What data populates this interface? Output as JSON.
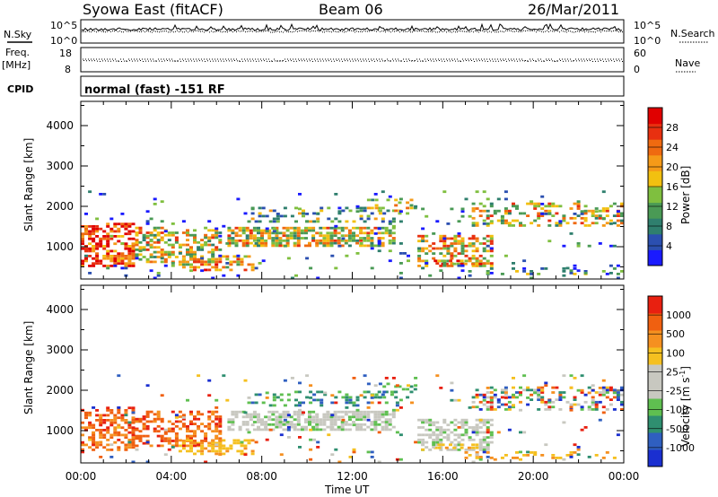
{
  "header": {
    "title": "Syowa East (fitACF)",
    "beam": "Beam 06",
    "date": "26/Mar/2011"
  },
  "status_panels": {
    "nsky": {
      "label": "N.Sky",
      "ticks": [
        "10^5",
        "10^0"
      ]
    },
    "nsearch": {
      "label": "N.Search",
      "ticks": [
        "10^5",
        "10^0"
      ]
    },
    "freq": {
      "label": "Freq.",
      "units": "[MHz]",
      "ticks": [
        "18",
        "8"
      ]
    },
    "nave": {
      "label": "Nave",
      "ticks": [
        "60",
        "0"
      ]
    },
    "cpid": {
      "label": "CPID",
      "text": "normal (fast) -151 RF"
    }
  },
  "chart_data": [
    {
      "type": "heatmap",
      "name": "power",
      "ylabel": "Slant Range [km]",
      "xlabel": "",
      "ylim": [
        200,
        4600
      ],
      "yticks": [
        "1000",
        "2000",
        "3000",
        "4000"
      ],
      "xticks": [
        "00:00",
        "04:00",
        "08:00",
        "12:00",
        "16:00",
        "20:00",
        "00:00"
      ],
      "colorbar": {
        "label": "Power [dB]",
        "ticks": [
          "4",
          "8",
          "12",
          "16",
          "20",
          "24",
          "28"
        ],
        "colors": [
          "#1a1aff",
          "#2b4fb0",
          "#2f7f6e",
          "#4a9a55",
          "#7fbf3f",
          "#f2c010",
          "#f59a18",
          "#ef6a10",
          "#e83010",
          "#e00000"
        ]
      }
    },
    {
      "type": "heatmap",
      "name": "velocity",
      "ylabel": "Slant Range [km]",
      "xlabel": "Time UT",
      "ylim": [
        200,
        4600
      ],
      "yticks": [
        "1000",
        "2000",
        "3000",
        "4000"
      ],
      "xticks": [
        "00:00",
        "04:00",
        "08:00",
        "12:00",
        "16:00",
        "20:00",
        "00:00"
      ],
      "colorbar": {
        "label": "Velocity [m s",
        "label_sup": "-1",
        "label_end": "]",
        "ticks": [
          "1000",
          "500",
          "100",
          "25",
          "-25",
          "-100",
          "-500",
          "-1000"
        ],
        "colors": [
          "#1a2fd0",
          "#2f5fc0",
          "#2f8f70",
          "#5fbf50",
          "#c8c8c0",
          "#c8c8c0",
          "#f5c020",
          "#f59020",
          "#f06010",
          "#e82010"
        ]
      }
    }
  ]
}
